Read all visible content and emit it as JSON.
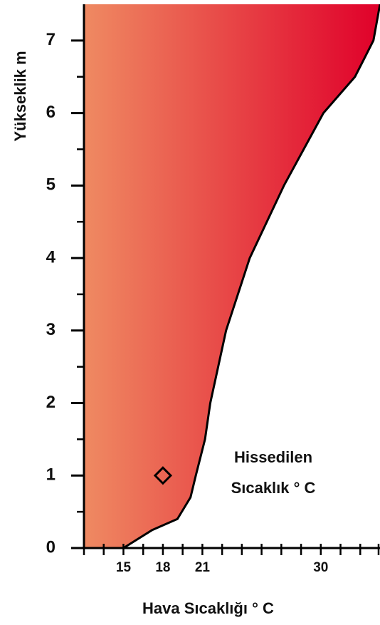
{
  "chart_data": {
    "type": "area",
    "xlabel": "Hava Sıcaklığı ° C",
    "ylabel": "Yükseklik m",
    "x": [
      15,
      17.2,
      19.1,
      20.1,
      20.5,
      21.2,
      21.6,
      22.8,
      24.6,
      27.2,
      30.2,
      32.6,
      34,
      34.5
    ],
    "series": [
      {
        "color": "#000000",
        "values": [
          0,
          0.25,
          0.4,
          0.7,
          1.0,
          1.5,
          2.0,
          3.0,
          4.0,
          5.0,
          6.0,
          6.5,
          7.0,
          7.5
        ]
      }
    ],
    "fill_colors": [
      "#ef8a62",
      "#e0002a"
    ],
    "xlim": [
      12,
      34.5
    ],
    "ylim": [
      0,
      7.5
    ],
    "xticks": [
      15,
      18,
      21,
      30
    ],
    "xminorticks": [
      12,
      13.5,
      15,
      16.5,
      18,
      19.5,
      21,
      22.5,
      24,
      25.5,
      27,
      28.5,
      30,
      31.5,
      33,
      34.5
    ],
    "yticks": [
      0,
      1,
      2,
      3,
      4,
      5,
      6,
      7
    ],
    "yminorticks": [
      0.5,
      1.5,
      2.5,
      3.5,
      4.5,
      5.5,
      6.5
    ],
    "marker": {
      "x": 18,
      "y": 1,
      "label": [
        "Hissedilen",
        "Sıcaklık ° C"
      ]
    }
  }
}
